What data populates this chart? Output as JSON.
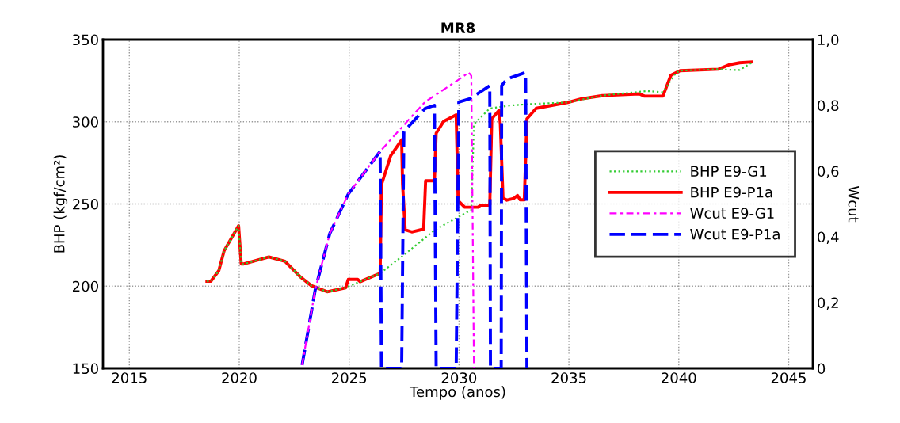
{
  "chart_data": {
    "type": "line",
    "title": "MR8",
    "xlabel": "Tempo (anos)",
    "ylabel": "BHP (kgf/cm²)",
    "y2label": "Wcut",
    "xlim": [
      2013.8,
      2046.1
    ],
    "xticks": [
      2015,
      2020,
      2025,
      2030,
      2035,
      2040,
      2045
    ],
    "ylim": [
      150,
      350
    ],
    "yticks": [
      150,
      200,
      250,
      300,
      350
    ],
    "y2lim": [
      0,
      1.0
    ],
    "y2ticks": [
      0,
      {
        "value": 0.2,
        "label": "0,2"
      },
      {
        "value": 0.4,
        "label": "0,4"
      },
      {
        "value": 0.6,
        "label": "0,6"
      },
      {
        "value": 0.8,
        "label": "0,8"
      },
      {
        "value": 1.0,
        "label": "1,0"
      }
    ],
    "grid": true,
    "legend": "center right",
    "marker": "none",
    "series": [
      {
        "name": "BHP E9-G1",
        "color": "#33cc33",
        "line_style": "dotted",
        "x": [
          2018.53,
          2018.71,
          2019.07,
          2019.31,
          2019.97,
          2020.09,
          2020.21,
          2021.35,
          2022.08,
          2022.8,
          2023.28,
          2024.0,
          2024.84,
          2024.96,
          2026.41,
          2027.43,
          2028.91,
          2030.56,
          2030.68,
          2031.34,
          2031.46,
          2032.3,
          2033.15,
          2034.95,
          2036.52,
          2038.56,
          2039.28,
          2039.88,
          2040.06,
          2041.81,
          2042.53,
          2042.77,
          2043.31
        ],
        "values": [
          203,
          203,
          209.4,
          221.5,
          236.7,
          213.5,
          213.5,
          217.8,
          215.1,
          205.4,
          200.3,
          196.6,
          199,
          199.8,
          207.8,
          218.3,
          234.3,
          246.4,
          298.6,
          307.4,
          308.2,
          309.9,
          310.7,
          311.8,
          316,
          318.7,
          318,
          329.9,
          331.1,
          332,
          331.5,
          331.5,
          335.9
        ]
      },
      {
        "name": "BHP E9-P1a",
        "color": "#ff0000",
        "line_style": "solid",
        "x": [
          2018.53,
          2018.71,
          2019.07,
          2019.31,
          2019.97,
          2020.09,
          2020.21,
          2021.35,
          2022.08,
          2022.8,
          2023.28,
          2024.0,
          2024.84,
          2024.96,
          2025.39,
          2025.5,
          2026.41,
          2026.47,
          2026.89,
          2027.39,
          2027.43,
          2027.55,
          2027.85,
          2028.39,
          2028.48,
          2028.88,
          2028.96,
          2029.3,
          2029.87,
          2029.96,
          2030.26,
          2030.86,
          2030.98,
          2031.4,
          2031.49,
          2031.82,
          2031.88,
          2032.0,
          2032.18,
          2032.48,
          2032.66,
          2032.78,
          2032.97,
          2033.09,
          2033.51,
          2034.95,
          2035.55,
          2036.52,
          2038.2,
          2038.44,
          2039.28,
          2039.64,
          2040.06,
          2041.81,
          2042.29,
          2042.77,
          2043.31
        ],
        "values": [
          203,
          203,
          209.4,
          221.5,
          236.7,
          213.5,
          213.5,
          217.8,
          215.1,
          205.4,
          200.3,
          196.6,
          199,
          204.1,
          204.1,
          202.7,
          207.8,
          261.7,
          279.3,
          289,
          262.4,
          234.3,
          233,
          234.7,
          264.1,
          264.1,
          293,
          300.2,
          304.2,
          252,
          248,
          248,
          249.3,
          249.3,
          301.8,
          307,
          298.6,
          253.6,
          252.3,
          253.3,
          255.2,
          252.5,
          252.5,
          301.8,
          308.2,
          311.8,
          313.9,
          315.9,
          317,
          315.6,
          315.6,
          328.3,
          331.1,
          332,
          334.7,
          335.9,
          336.4
        ]
      },
      {
        "name": "Wcut E9-G1",
        "color": "#ff00ff",
        "line_style": "dashdot",
        "axis": "y2",
        "x": [
          2022.86,
          2023.46,
          2024.12,
          2024.96,
          2026.41,
          2027.49,
          2028.45,
          2030.02,
          2030.44,
          2030.56,
          2030.68
        ],
        "values": [
          0.01,
          0.24,
          0.41,
          0.53,
          0.66,
          0.74,
          0.81,
          0.88,
          0.9,
          0.89,
          0
        ]
      },
      {
        "name": "Wcut E9-P1a",
        "color": "#0000ff",
        "line_style": "dashed",
        "axis": "y2",
        "x": [
          2022.86,
          2023.46,
          2024.12,
          2024.96,
          2026.41,
          2026.47,
          2027.39,
          2027.49,
          2028.45,
          2028.88,
          2028.96,
          2029.87,
          2029.99,
          2030.5,
          2031.4,
          2031.43,
          2031.92,
          2031.94,
          2032.18,
          2033.03,
          2033.09
        ],
        "values": [
          0.01,
          0.24,
          0.41,
          0.53,
          0.66,
          0,
          0,
          0.72,
          0.79,
          0.8,
          0,
          0,
          0.81,
          0.82,
          0.86,
          0,
          0,
          0.86,
          0.88,
          0.9,
          0
        ]
      }
    ]
  }
}
